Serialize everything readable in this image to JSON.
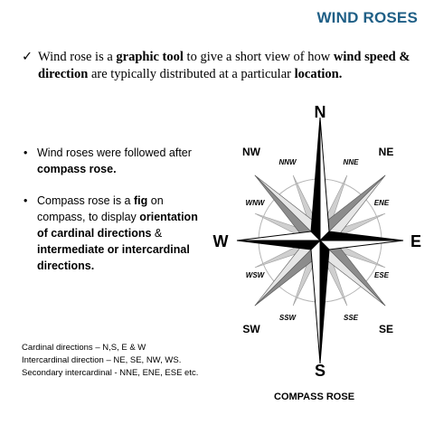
{
  "slide": {
    "title": "WIND ROSES",
    "intro": {
      "check": "✓",
      "parts": [
        {
          "text": "Wind rose is a ",
          "bold": false
        },
        {
          "text": "graphic tool",
          "bold": true
        },
        {
          "text": " to give a short view of how ",
          "bold": false
        },
        {
          "text": "wind speed & direction",
          "bold": true
        },
        {
          "text": " are typically distributed at a particular ",
          "bold": false
        },
        {
          "text": "location.",
          "bold": true
        }
      ]
    },
    "bullets": [
      {
        "dot": "•",
        "parts": [
          {
            "text": "Wind roses were followed after ",
            "bold": false
          },
          {
            "text": "compass rose.",
            "bold": true
          }
        ]
      },
      {
        "dot": "•",
        "parts": [
          {
            "text": "Compass rose is a ",
            "bold": false
          },
          {
            "text": "fig",
            "bold": true
          },
          {
            "text": " on compass, to display ",
            "bold": false
          },
          {
            "text": "orientation of cardinal directions",
            "bold": true
          },
          {
            "text": " & ",
            "bold": false
          },
          {
            "text": "intermediate or intercardinal directions.",
            "bold": true
          }
        ]
      }
    ],
    "notes": [
      "Cardinal directions – N,S, E & W",
      "Intercardinal direction – NE, SE, NW, WS.",
      "Secondary intercardinal  - NNE, ENE, ESE etc."
    ],
    "compass": {
      "cardinal": {
        "n": "N",
        "e": "E",
        "s": "S",
        "w": "W"
      },
      "intercardinal": {
        "ne": "NE",
        "se": "SE",
        "sw": "SW",
        "nw": "NW"
      },
      "secondary": {
        "nne": "NNE",
        "ene": "ENE",
        "ese": "ESE",
        "sse": "SSE",
        "ssw": "SSW",
        "wsw": "WSW",
        "wnw": "WNW",
        "nnw": "NNW"
      },
      "colors": {
        "dark": "#000000",
        "light": "#ffffff",
        "gray": "#8c8c8c",
        "lightgray": "#cfcfcf"
      }
    },
    "caption": "COMPASS ROSE"
  }
}
